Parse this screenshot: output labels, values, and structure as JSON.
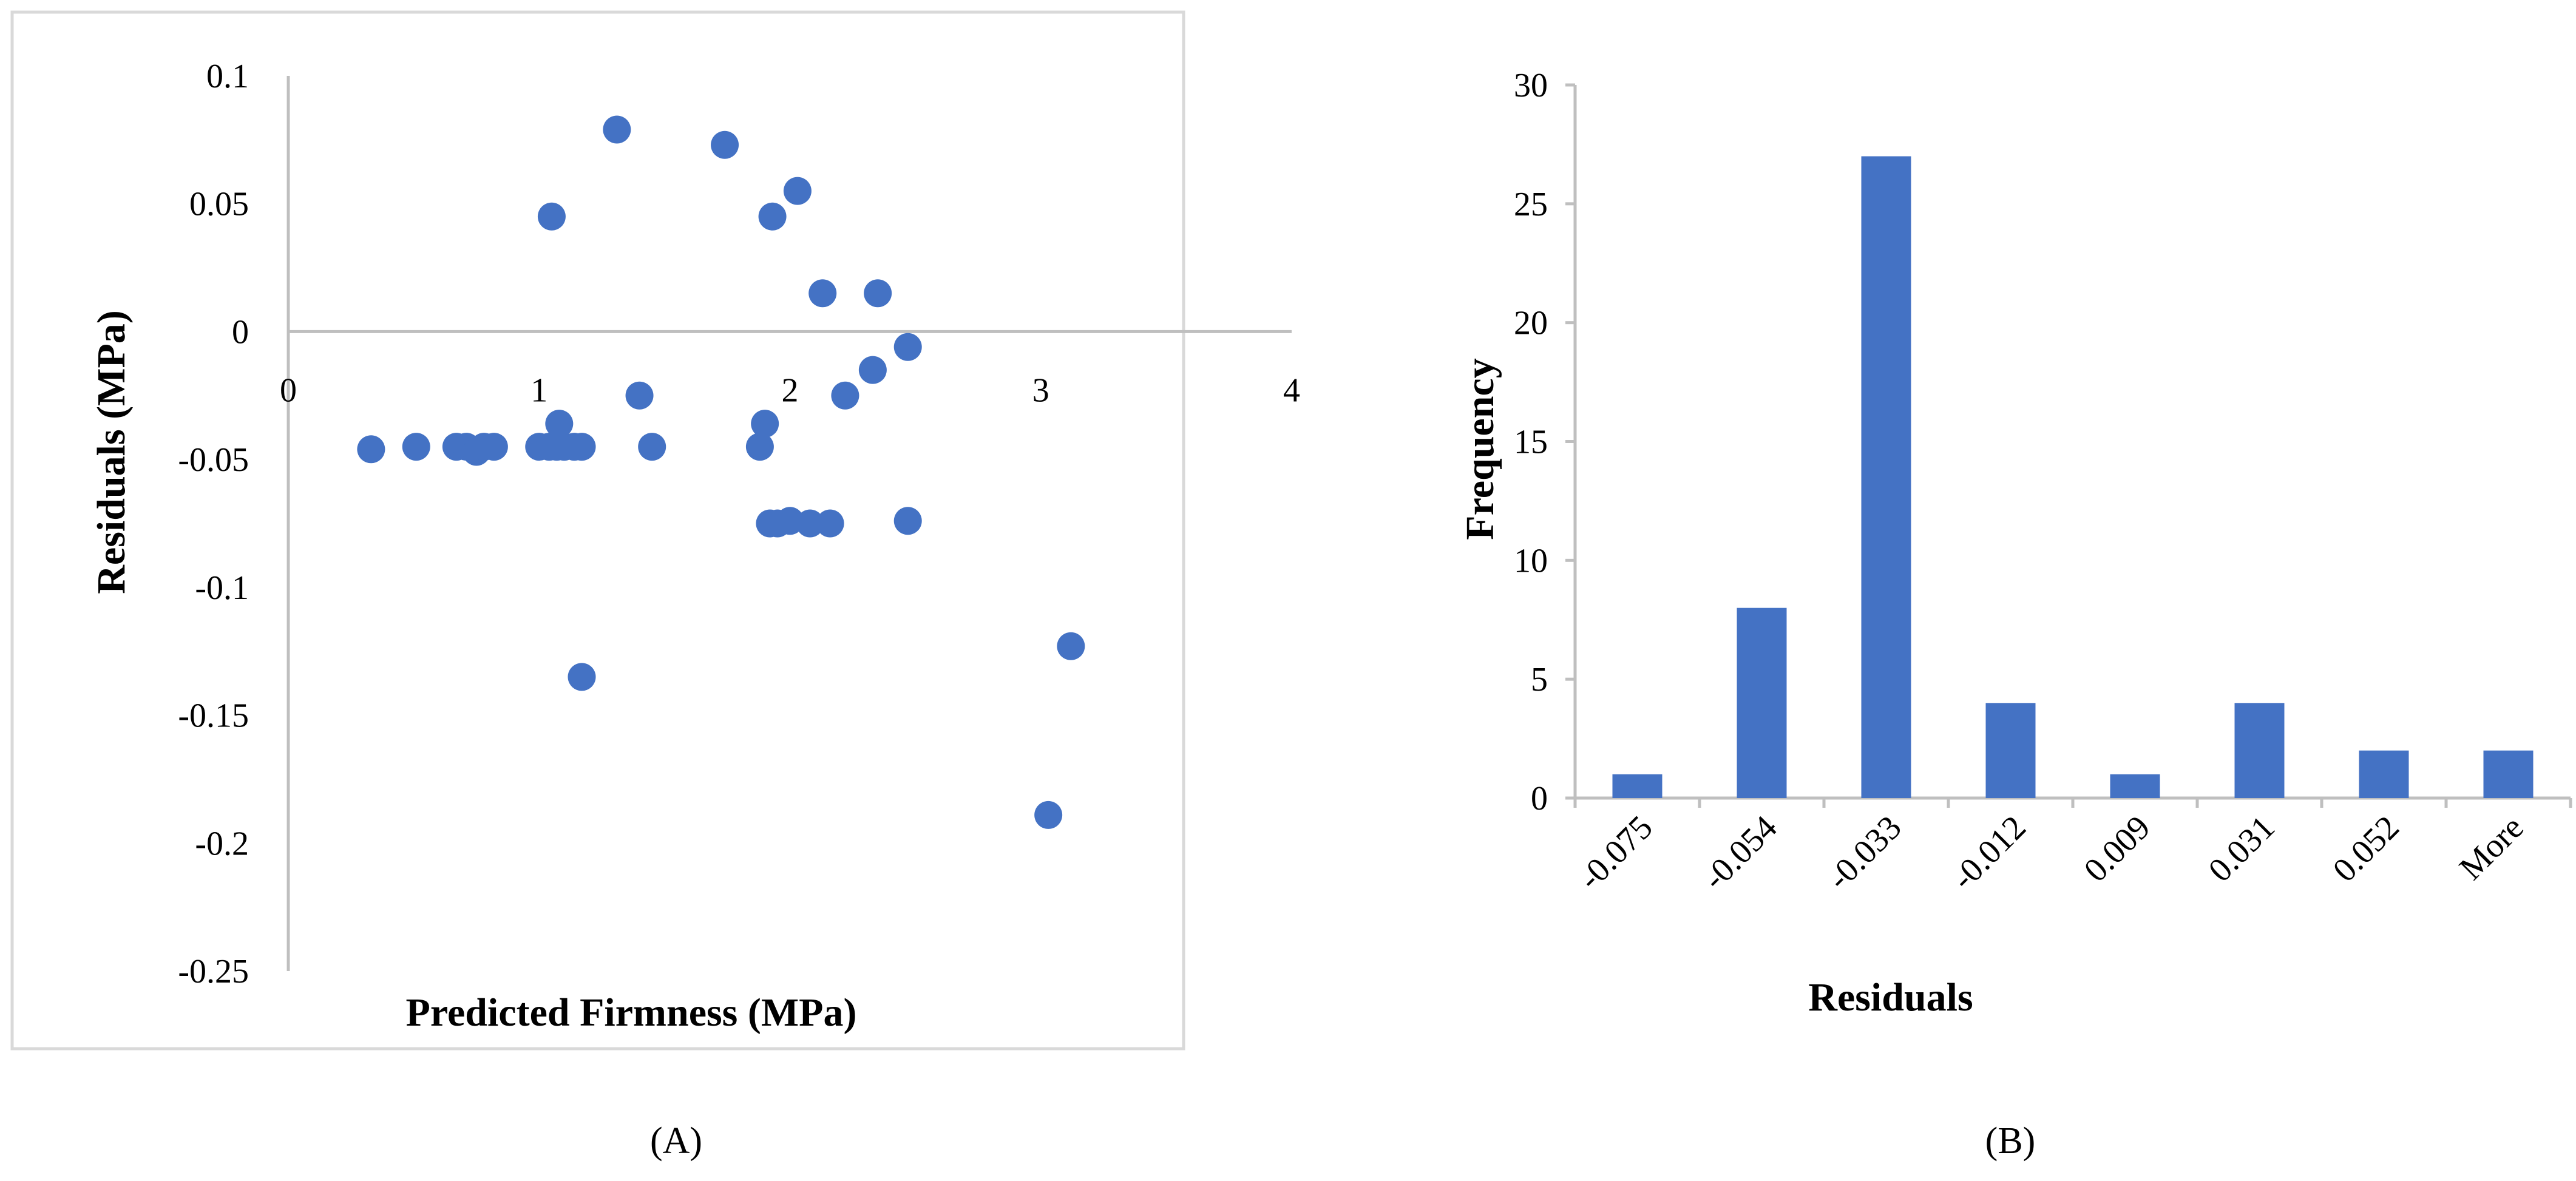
{
  "panels": {
    "a_label": "(A)",
    "b_label": "(B)"
  },
  "colors": {
    "marker": "#4472C4",
    "axis": "#BFBFBF",
    "frame": "#D9D9D9",
    "text": "#000000"
  },
  "chart_data": [
    {
      "type": "scatter",
      "title": "",
      "xlabel": "Predicted Firmness (MPa)",
      "ylabel": "Residuals  (MPa)",
      "xlim": [
        0,
        4
      ],
      "ylim": [
        -0.25,
        0.1
      ],
      "x_ticks": [
        0,
        1,
        2,
        3,
        4
      ],
      "y_ticks": [
        0.1,
        0.05,
        0,
        -0.05,
        -0.1,
        -0.15,
        -0.2,
        -0.25
      ],
      "grid": false,
      "series": [
        {
          "x": [
            0.33,
            0.51,
            0.67,
            0.71,
            0.75,
            0.78,
            0.82,
            1.0,
            1.04,
            1.07,
            1.1,
            1.14,
            1.17,
            1.05,
            1.08,
            1.17,
            1.31,
            1.4,
            1.45,
            1.74,
            1.88,
            1.9,
            1.92,
            1.93,
            1.95,
            2.0,
            2.03,
            2.08,
            2.13,
            2.16,
            2.22,
            2.33,
            2.35,
            2.47,
            2.47,
            3.03,
            3.12
          ],
          "y": [
            -0.046,
            -0.045,
            -0.045,
            -0.045,
            -0.047,
            -0.045,
            -0.045,
            -0.045,
            -0.045,
            -0.045,
            -0.045,
            -0.045,
            -0.045,
            0.045,
            -0.036,
            -0.135,
            0.079,
            -0.025,
            -0.045,
            0.073,
            -0.045,
            -0.036,
            -0.075,
            0.045,
            -0.075,
            -0.074,
            0.055,
            -0.075,
            0.015,
            -0.075,
            -0.025,
            -0.015,
            0.015,
            -0.074,
            -0.006,
            -0.189,
            -0.123
          ]
        }
      ]
    },
    {
      "type": "bar",
      "title": "",
      "xlabel": "Residuals",
      "ylabel": "Frequency",
      "categories": [
        "-0.075",
        "-0.054",
        "-0.033",
        "-0.012",
        "0.009",
        "0.031",
        "0.052",
        "More"
      ],
      "values": [
        1,
        8,
        27,
        4,
        1,
        4,
        2,
        2
      ],
      "ylim": [
        0,
        30
      ],
      "y_ticks": [
        0,
        5,
        10,
        15,
        20,
        25,
        30
      ],
      "grid": false
    }
  ]
}
